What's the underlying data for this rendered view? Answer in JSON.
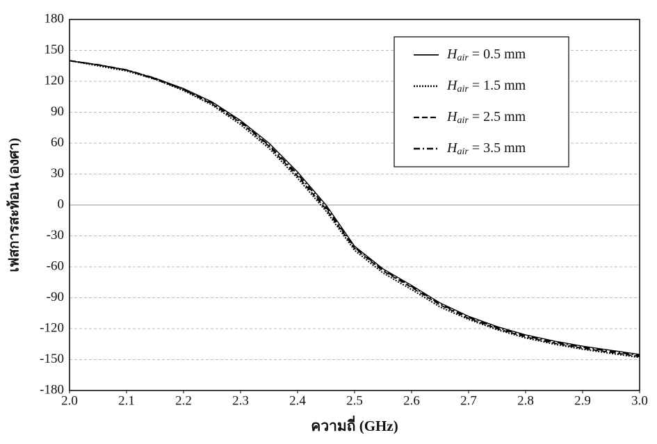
{
  "chart_data": {
    "type": "line",
    "x_label": "ความถี่ (GHz)",
    "y_label": "เฟสการสะท้อน (องศา)",
    "x": [
      2.0,
      2.05,
      2.1,
      2.15,
      2.2,
      2.25,
      2.3,
      2.35,
      2.4,
      2.45,
      2.5,
      2.55,
      2.6,
      2.65,
      2.7,
      2.75,
      2.8,
      2.85,
      2.9,
      2.95,
      3.0
    ],
    "series": [
      {
        "name": "Hair = 0.5 mm",
        "color": "#000000",
        "dash": "solid",
        "values": [
          140,
          136,
          131,
          123,
          113,
          100,
          82,
          60,
          32,
          0,
          -40,
          -62,
          -78,
          -95,
          -108,
          -118,
          -126,
          -132,
          -137,
          -141,
          -145
        ]
      },
      {
        "name": "Hair = 1.5 mm",
        "color": "#000000",
        "dash": "dotted",
        "values": [
          140,
          135,
          130,
          122,
          111,
          97,
          78,
          55,
          26,
          -6,
          -44,
          -66,
          -82,
          -99,
          -111,
          -121,
          -129,
          -135,
          -140,
          -144,
          -148
        ]
      },
      {
        "name": "Hair = 2.5 mm",
        "color": "#000000",
        "dash": "dashed",
        "values": [
          140,
          136,
          131,
          122,
          112,
          98,
          80,
          57,
          28,
          -4,
          -42,
          -64,
          -80,
          -97,
          -110,
          -120,
          -128,
          -134,
          -139,
          -143,
          -147
        ]
      },
      {
        "name": "Hair = 3.5 mm",
        "color": "#000000",
        "dash": "dashdot",
        "values": [
          140,
          136,
          131,
          123,
          112,
          99,
          81,
          58,
          30,
          -2,
          -41,
          -63,
          -79,
          -96,
          -109,
          -119,
          -127,
          -133,
          -138,
          -142,
          -146
        ]
      }
    ],
    "xlim": [
      2.0,
      3.0
    ],
    "xticks": [
      {
        "value": 2.0,
        "label": "2.0"
      },
      2.1,
      2.2,
      2.3,
      2.4,
      2.5,
      2.6,
      2.7,
      2.8,
      2.9,
      {
        "value": 3.0,
        "label": "3.0"
      }
    ],
    "ylim": [
      -180,
      180
    ],
    "yticks": [
      -180,
      -150,
      -120,
      -90,
      -60,
      -30,
      0,
      30,
      60,
      90,
      120,
      150,
      180
    ],
    "grid": true,
    "legend": "upper right"
  }
}
